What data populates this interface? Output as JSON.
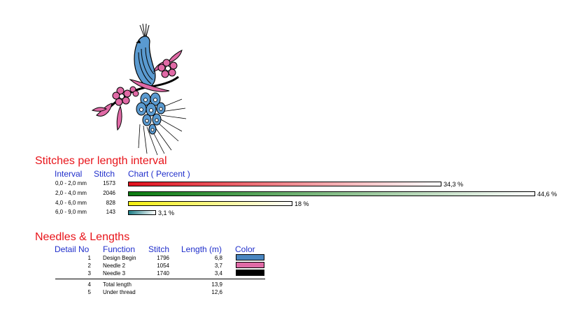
{
  "stitches_section": {
    "title": "Stitches per length interval",
    "headers": {
      "interval": "Interval",
      "stitch": "Stitch",
      "chart": "Chart ( Percent )"
    },
    "rows": [
      {
        "interval": "0,0 - 2,0 mm",
        "stitch": "1573",
        "percent_label": "34,3 %",
        "percent": 34.3,
        "color": "#e0101c"
      },
      {
        "interval": "2,0 - 4,0 mm",
        "stitch": "2046",
        "percent_label": "44,6 %",
        "percent": 44.6,
        "color": "#0a7a10"
      },
      {
        "interval": "4,0 - 6,0 mm",
        "stitch": "828",
        "percent_label": "18 %",
        "percent": 18,
        "color": "#f2ee10"
      },
      {
        "interval": "6,0 - 9,0 mm",
        "stitch": "143",
        "percent_label": "3,1 %",
        "percent": 3.1,
        "color": "#1f7f88"
      }
    ]
  },
  "needles_section": {
    "title": "Needles & Lengths",
    "headers": {
      "detail": "Detail No",
      "function": "Function",
      "stitch": "Stitch",
      "length": "Length (m)",
      "color": "Color"
    },
    "rows": [
      {
        "detail": "1",
        "function": "Design Begin",
        "stitch": "1796",
        "length": "6,8",
        "color": "#4a86c0"
      },
      {
        "detail": "2",
        "function": "Needle 2",
        "stitch": "1054",
        "length": "3,7",
        "color": "#e06aa6"
      },
      {
        "detail": "3",
        "function": "Needle 3",
        "stitch": "1740",
        "length": "3,4",
        "color": "#000000"
      }
    ],
    "totals": [
      {
        "detail": "4",
        "function": "Total length",
        "length": "13,9"
      },
      {
        "detail": "5",
        "function": "Under thread",
        "length": "12,6"
      }
    ]
  },
  "thread_colors": {
    "blue": "#4a86c0",
    "pink": "#e06aa6",
    "black": "#000000"
  }
}
